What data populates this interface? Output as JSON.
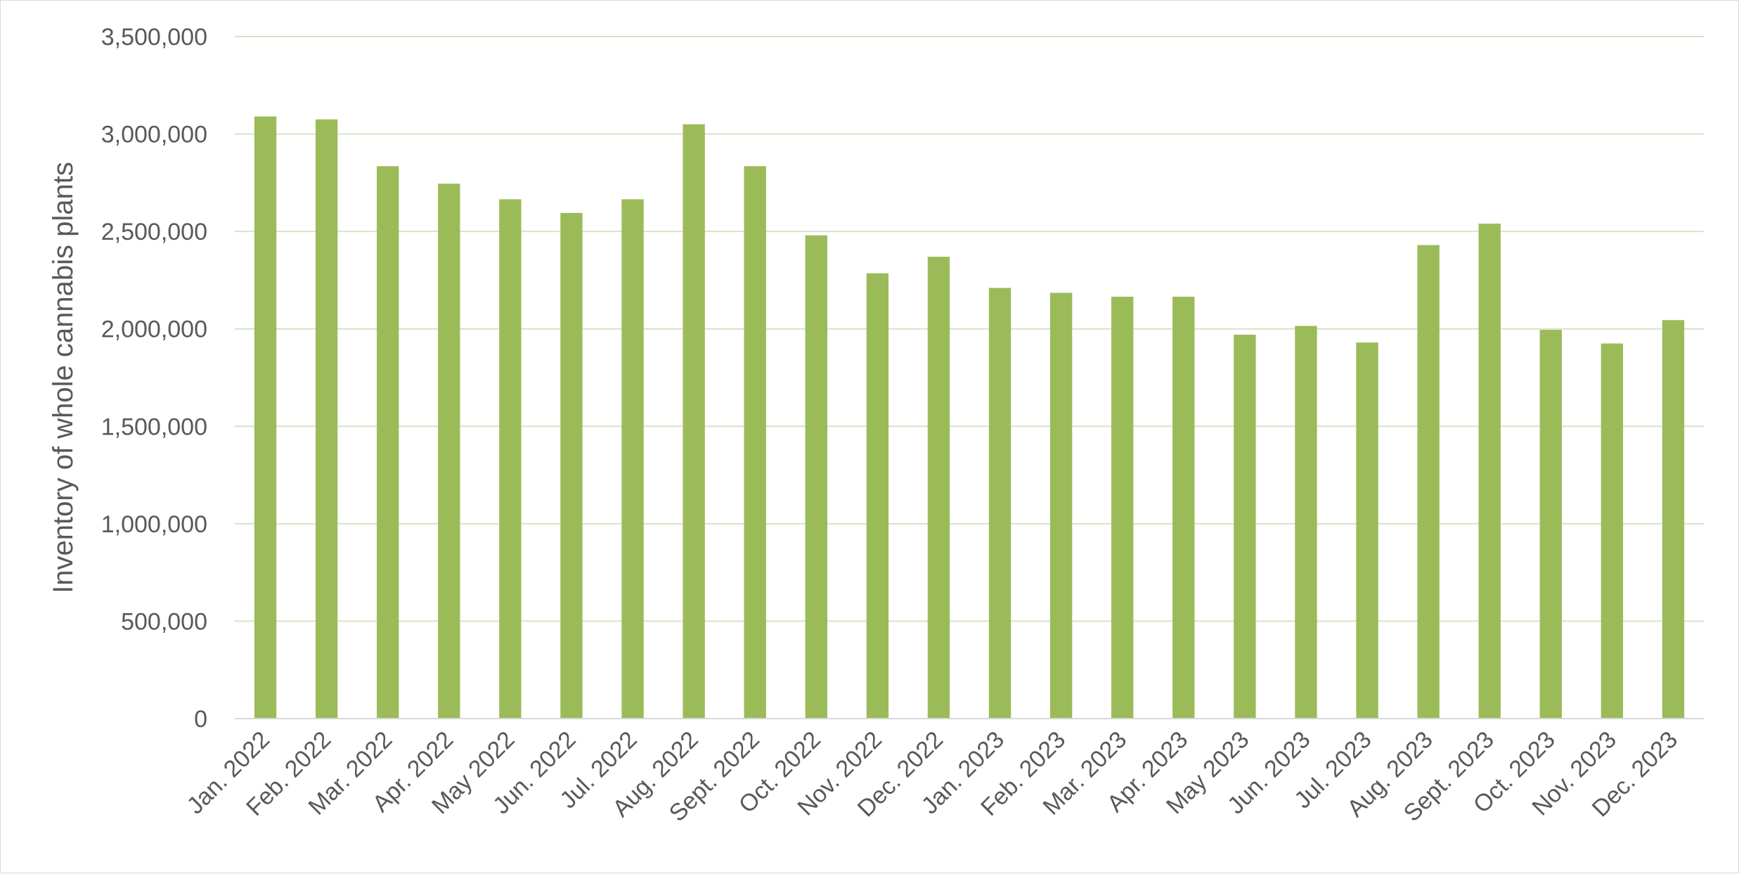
{
  "chart_data": {
    "type": "bar",
    "title": "",
    "xlabel": "",
    "ylabel": "Inventory of whole cannabis plants",
    "ylim": [
      0,
      3500000
    ],
    "ytick_step": 500000,
    "ytick_labels": [
      "0",
      "500,000",
      "1,000,000",
      "1,500,000",
      "2,000,000",
      "2,500,000",
      "3,000,000",
      "3,500,000"
    ],
    "grid": true,
    "legend": "none",
    "bar_color": "#9BBB59",
    "grid_color": "#D9E2C7",
    "axis_color": "#D9D9D9",
    "categories": [
      "Jan. 2022",
      "Feb. 2022",
      "Mar. 2022",
      "Apr. 2022",
      "May 2022",
      "Jun. 2022",
      "Jul. 2022",
      "Aug. 2022",
      "Sept. 2022",
      "Oct. 2022",
      "Nov. 2022",
      "Dec. 2022",
      "Jan. 2023",
      "Feb. 2023",
      "Mar. 2023",
      "Apr. 2023",
      "May 2023",
      "Jun. 2023",
      "Jul. 2023",
      "Aug. 2023",
      "Sept. 2023",
      "Oct. 2023",
      "Nov. 2023",
      "Dec. 2023"
    ],
    "values": [
      3090000,
      3075000,
      2835000,
      2745000,
      2665000,
      2595000,
      2665000,
      3050000,
      2835000,
      2480000,
      2285000,
      2370000,
      2210000,
      2185000,
      2165000,
      2165000,
      1970000,
      2015000,
      1930000,
      2430000,
      2540000,
      1995000,
      1925000,
      2045000
    ]
  }
}
